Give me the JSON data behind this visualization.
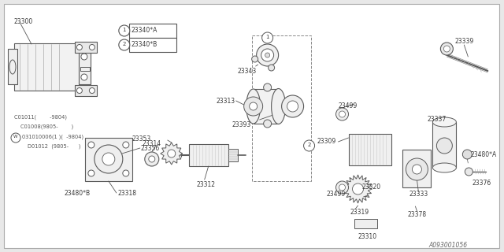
{
  "bg_color": "#e8e8e8",
  "diagram_bg": "#ffffff",
  "line_color": "#5a5a5a",
  "text_color": "#3a3a3a",
  "border_color": "#999999",
  "footer": "A093001056",
  "figsize": [
    6.4,
    3.2
  ],
  "dpi": 100,
  "notes": [
    "C01011(        -9804)",
    "C01008(9805-        )",
    "Ⓜ031010006（1 ）（   -9804） 23353",
    "D01012  （9805-       ）"
  ],
  "legend_items": [
    {
      "num": "1",
      "text": "23340*A"
    },
    {
      "num": "2",
      "text": "23340*B"
    }
  ]
}
